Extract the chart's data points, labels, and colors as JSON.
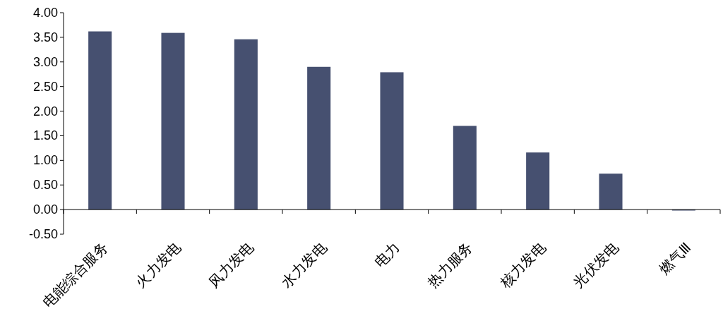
{
  "chart_data": {
    "type": "bar",
    "categories": [
      "电能综合服务",
      "火力发电",
      "风力发电",
      "水力发电",
      "电力",
      "热力服务",
      "核力发电",
      "光伏发电",
      "燃气Ⅲ"
    ],
    "values": [
      3.62,
      3.59,
      3.46,
      2.9,
      2.79,
      1.7,
      1.16,
      0.73,
      -0.02
    ],
    "color": "#465070",
    "ylim": [
      -0.5,
      4
    ],
    "yticks": [
      {
        "value": -0.5,
        "label": "-0.50"
      },
      {
        "value": 0,
        "label": "0.00"
      },
      {
        "value": 0.5,
        "label": "0.50"
      },
      {
        "value": 1,
        "label": "1.00"
      },
      {
        "value": 1.5,
        "label": "1.50"
      },
      {
        "value": 2,
        "label": "2.00"
      },
      {
        "value": 2.5,
        "label": "2.50"
      },
      {
        "value": 3,
        "label": "3.00"
      },
      {
        "value": 3.5,
        "label": "3.50"
      },
      {
        "value": 4,
        "label": "4.00"
      }
    ]
  }
}
